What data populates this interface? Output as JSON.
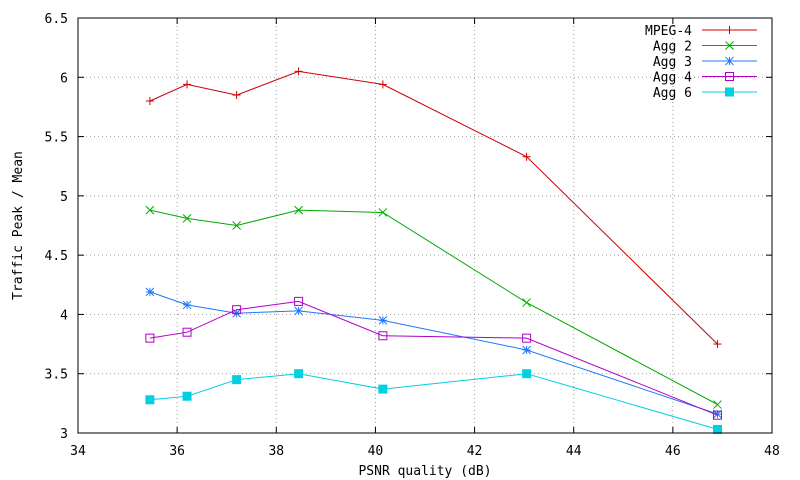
{
  "chart_data": {
    "type": "line",
    "title": "",
    "xlabel": "PSNR quality (dB)",
    "ylabel": "Traffic Peak / Mean",
    "xlim": [
      34,
      48
    ],
    "ylim": [
      3,
      6.5
    ],
    "x_ticks": [
      34,
      36,
      38,
      40,
      42,
      44,
      46,
      48
    ],
    "y_ticks": [
      3,
      3.5,
      4,
      4.5,
      5,
      5.5,
      6,
      6.5
    ],
    "x_tick_labels": [
      "34",
      "36",
      "38",
      "40",
      "42",
      "44",
      "46",
      "48"
    ],
    "y_tick_labels": [
      "3",
      "3.5",
      "4",
      "4.5",
      "5",
      "5.5",
      "6",
      "6.5"
    ],
    "grid": true,
    "legend_position": "top-right",
    "series": [
      {
        "name": "MPEG-4",
        "color": "#cc0000",
        "marker": "plus",
        "x": [
          35.45,
          36.2,
          37.2,
          38.45,
          40.15,
          43.05,
          46.9
        ],
        "y": [
          5.8,
          5.94,
          5.85,
          6.05,
          5.94,
          5.33,
          3.75
        ]
      },
      {
        "name": "Agg 2",
        "color": "#00aa00",
        "marker": "x",
        "x": [
          35.45,
          36.2,
          37.2,
          38.45,
          40.15,
          43.05,
          46.9
        ],
        "y": [
          4.88,
          4.81,
          4.75,
          4.88,
          4.86,
          4.1,
          3.24
        ]
      },
      {
        "name": "Agg 3",
        "color": "#1e78ff",
        "marker": "star",
        "x": [
          35.45,
          36.2,
          37.2,
          38.45,
          40.15,
          43.05,
          46.9
        ],
        "y": [
          4.19,
          4.08,
          4.01,
          4.03,
          3.95,
          3.7,
          3.16
        ]
      },
      {
        "name": "Agg 4",
        "color": "#b000c8",
        "marker": "square-open",
        "x": [
          35.45,
          36.2,
          37.2,
          38.45,
          40.15,
          43.05,
          46.9
        ],
        "y": [
          3.8,
          3.85,
          4.04,
          4.11,
          3.82,
          3.8,
          3.15
        ]
      },
      {
        "name": "Agg 6",
        "color": "#00d0e0",
        "marker": "square-filled",
        "x": [
          35.45,
          36.2,
          37.2,
          38.45,
          40.15,
          43.05,
          46.9
        ],
        "y": [
          3.28,
          3.31,
          3.45,
          3.5,
          3.37,
          3.5,
          3.03
        ]
      }
    ]
  }
}
